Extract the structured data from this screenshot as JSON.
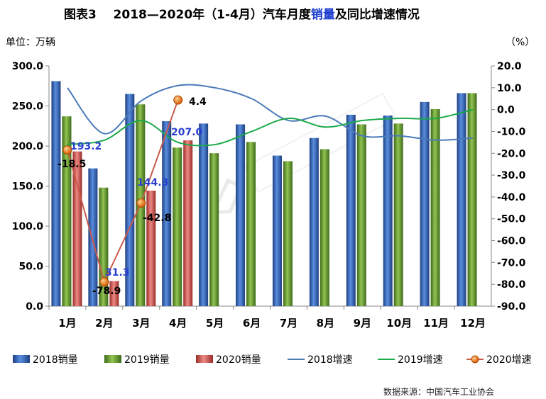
{
  "title_prefix": "图表3",
  "title_main": "2018—2020年（1-4月）汽车月度",
  "title_highlight": "销量",
  "title_suffix": "及同比增速情况",
  "unit_left": "单位：万辆",
  "unit_right": "（%）",
  "source": "数据来源：中国汽车工业协会",
  "colors": {
    "bar_2018": "#3a6fc4",
    "bar_2019": "#6fa03a",
    "bar_2020": "#d65a54",
    "line_2018": "#4a7ab8",
    "line_2019": "#1aaa4a",
    "line_2020": "#c95a4a",
    "marker_2020": "#e67e22",
    "label_blue": "#2a3fd0"
  },
  "chart_data": {
    "type": "bar+line",
    "categories": [
      "1月",
      "2月",
      "3月",
      "4月",
      "5月",
      "6月",
      "7月",
      "8月",
      "9月",
      "10月",
      "11月",
      "12月"
    ],
    "left_axis": {
      "min": 0,
      "max": 300,
      "step": 50,
      "ticks": [
        "0.0",
        "50.0",
        "100.0",
        "150.0",
        "200.0",
        "250.0",
        "300.0"
      ]
    },
    "right_axis": {
      "min": -90,
      "max": 20,
      "step": 10,
      "ticks": [
        "-90.0",
        "-80.0",
        "-70.0",
        "-60.0",
        "-50.0",
        "-40.0",
        "-30.0",
        "-20.0",
        "-10.0",
        "0.0",
        "10.0",
        "20.0"
      ]
    },
    "bar_series": [
      {
        "name": "2018销量",
        "values": [
          281,
          172,
          265,
          231,
          228,
          227,
          188,
          210,
          239,
          238,
          255,
          266
        ]
      },
      {
        "name": "2019销量",
        "values": [
          237,
          148,
          252,
          198,
          191,
          205,
          181,
          196,
          227,
          228,
          246,
          266
        ]
      },
      {
        "name": "2020销量",
        "values": [
          193.2,
          31.3,
          144.3,
          207.0
        ]
      }
    ],
    "bar_labels_2020": [
      "193.2",
      "31.3",
      "144.3",
      "207.0"
    ],
    "line_series": [
      {
        "name": "2018增速",
        "values": [
          10,
          -11,
          4,
          11,
          10,
          5,
          -5,
          -3,
          -12,
          -12,
          -14,
          -13
        ]
      },
      {
        "name": "2019增速",
        "values": [
          -16,
          -14,
          -5,
          -15,
          -16,
          -10,
          -4,
          -8,
          -5,
          -4,
          -4,
          0
        ]
      },
      {
        "name": "2020增速",
        "values": [
          -18.5,
          -78.9,
          -42.8,
          4.4
        ]
      }
    ],
    "line_labels_2020": [
      "-18.5",
      "-78.9",
      "-42.8",
      "4.4"
    ],
    "legend": [
      "2018销量",
      "2019销量",
      "2020销量",
      "2018增速",
      "2019增速",
      "2020增速"
    ],
    "legend_position": "bottom"
  }
}
